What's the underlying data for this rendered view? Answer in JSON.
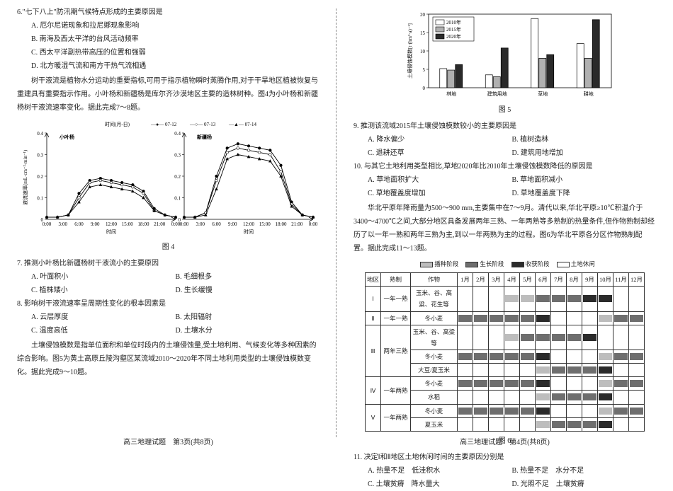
{
  "left": {
    "q6": {
      "stem": "6.\"七下八上\"防汛期气候特点形成的主要原因是",
      "A": "A. 厄尔尼诺现象和拉尼娜现象影响",
      "B": "B. 南海及西太平洋的台风活动频率",
      "C": "C. 西太平洋副热带高压的位置和强弱",
      "D": "D. 北方暖湿气流和南方干热气流相遇"
    },
    "intro78_1": "树干液流是植物水分运动的重要指标,可用于指示植物瞬时蒸腾作用,对于干旱地区植被恢复与重建具有重要指示作用。小叶杨和新疆杨是库尔齐沙漠地区主要的造林树种。图4为小叶杨和新疆杨树干液流速率变化。据此完成7～8题。",
    "fig4": {
      "caption": "图 4",
      "ylabel": "液流速率(mL·cm⁻²·min⁻¹)",
      "xlabel": "时间",
      "xlabel2": "时间",
      "date_label": "时间(月-日)",
      "series1": "07-12",
      "series2": "07-13",
      "series3": "07-14",
      "panel_left": "小叶杨",
      "panel_right": "新疆杨",
      "ticks_y": [
        "0",
        "0.1",
        "0.2",
        "0.3",
        "0.4"
      ],
      "ticks_x": [
        "0:00",
        "3:00",
        "6:00",
        "9:00",
        "12:00",
        "15:00",
        "18:00",
        "21:00",
        "0:00"
      ],
      "left_curves": {
        "d1": [
          0.01,
          0.01,
          0.02,
          0.12,
          0.18,
          0.19,
          0.18,
          0.17,
          0.16,
          0.13,
          0.05,
          0.02,
          0.01
        ],
        "d2": [
          0.01,
          0.01,
          0.02,
          0.1,
          0.17,
          0.18,
          0.17,
          0.16,
          0.15,
          0.12,
          0.04,
          0.02,
          0.01
        ],
        "d3": [
          0.01,
          0.01,
          0.02,
          0.08,
          0.15,
          0.16,
          0.15,
          0.14,
          0.13,
          0.1,
          0.04,
          0.02,
          0.01
        ]
      },
      "right_curves": {
        "d1": [
          0.01,
          0.01,
          0.03,
          0.2,
          0.33,
          0.35,
          0.34,
          0.33,
          0.32,
          0.25,
          0.08,
          0.02,
          0.01
        ],
        "d2": [
          0.01,
          0.01,
          0.03,
          0.18,
          0.31,
          0.33,
          0.32,
          0.31,
          0.3,
          0.22,
          0.07,
          0.02,
          0.01
        ],
        "d3": [
          0.01,
          0.01,
          0.02,
          0.14,
          0.28,
          0.3,
          0.29,
          0.28,
          0.27,
          0.2,
          0.06,
          0.02,
          0.01
        ]
      }
    },
    "q7": {
      "stem": "7. 推测小叶杨比新疆杨树干液流小的主要原因",
      "A": "A. 叶面积小",
      "B": "B. 毛细根多",
      "C": "C. 植株矮小",
      "D": "D. 生长缓慢"
    },
    "q8": {
      "stem": "8. 影响树干液流速率呈周期性变化的根本因素是",
      "A": "A. 云层厚度",
      "B": "B. 太阳辐射",
      "C": "C. 温度高低",
      "D": "D. 土壤水分"
    },
    "intro910": "土壤侵蚀模数是指单位面积和单位时段内的土壤侵蚀量,受土地利用、气候变化等多种因素的综合影响。图5为黄土高原丘陵沟壑区某流域2010～2020年不同土地利用类型的土壤侵蚀模数变化。据此完成9～10题。",
    "footer": "高三地理试题　第3页(共8页)"
  },
  "right": {
    "fig5": {
      "caption": "图 5",
      "ylabel": "土壤侵蚀模数[t·(hm²·a)⁻¹]",
      "legend": [
        "2010年",
        "2015年",
        "2020年"
      ],
      "categories": [
        "林地",
        "建筑用地",
        "草地",
        "耕地"
      ],
      "ylim": [
        0,
        20
      ],
      "ytick_step": 5,
      "values": {
        "2010": [
          5.2,
          3.5,
          18.8,
          12.0
        ],
        "2015": [
          4.8,
          3.0,
          8.0,
          8.0
        ],
        "2020": [
          6.3,
          10.8,
          9.0,
          18.5
        ]
      },
      "colors": {
        "2010": "#ffffff",
        "2015": "#b0b0b0",
        "2020": "#2a2a2a"
      },
      "bar_border": "#000"
    },
    "q9": {
      "stem": "9. 推测该流域2015年土壤侵蚀模数较小的主要原因是",
      "A": "A. 降水偏少",
      "B": "B. 植树造林",
      "C": "C. 退耕还草",
      "D": "D. 建筑用地增加"
    },
    "q10": {
      "stem": "10. 与其它土地利用类型相比,草地2020年比2010年土壤侵蚀模数降低的原因是",
      "A": "A. 草地面积扩大",
      "B": "B. 草地面积减小",
      "C": "C. 草地覆盖度增加",
      "D": "D. 草地覆盖度下降"
    },
    "intro1113": "华北平原年降雨量为500～900 mm,主要集中在7～9月。清代以来,华北平原≥10℃积温介于3400～4700℃之间,大部分地区具备发展两年三熟、一年两熟等多熟制的热量条件,但作物熟制却经历了以一年一熟和两年三熟为主,到以一年两熟为主的过程。图6为华北平原各分区作物熟制配置。据此完成11～13题。",
    "fig6": {
      "legend": {
        "sow": "播种阶段",
        "grow": "生长阶段",
        "harv": "收获阶段",
        "idle": "土地休闲"
      },
      "colors": {
        "sow": "#bdbdbd",
        "grow": "#6e6e6e",
        "harv": "#2b2b2b",
        "idle": "#ffffff"
      },
      "border": "#333",
      "header": [
        "地区",
        "熟制",
        "作物",
        "1月",
        "2月",
        "3月",
        "4月",
        "5月",
        "6月",
        "7月",
        "8月",
        "9月",
        "10月",
        "11月",
        "12月"
      ],
      "rows": [
        {
          "region": "Ⅰ",
          "rowspan": 1,
          "sys": "一年一熟",
          "crop": "玉米、谷、高粱、花生等",
          "bar": [
            "idle",
            "idle",
            "idle",
            "sow",
            "sow",
            "grow",
            "grow",
            "grow",
            "harv",
            "harv",
            "idle",
            "idle"
          ]
        },
        {
          "region": "Ⅱ",
          "rowspan": 1,
          "sys": "一年一熟",
          "crop": "冬小麦",
          "bar": [
            "grow",
            "grow",
            "grow",
            "grow",
            "grow",
            "harv",
            "idle",
            "idle",
            "idle",
            "sow",
            "grow",
            "grow"
          ]
        },
        {
          "region": "Ⅲ",
          "rowspan": 3,
          "sys": "两年三熟",
          "crop": "玉米、谷、高粱等",
          "bar": [
            "idle",
            "idle",
            "idle",
            "sow",
            "grow",
            "grow",
            "grow",
            "grow",
            "harv",
            "idle",
            "idle",
            "idle"
          ]
        },
        {
          "region": "",
          "rowspan": 0,
          "sys": "",
          "crop": "冬小麦",
          "bar": [
            "grow",
            "grow",
            "grow",
            "grow",
            "grow",
            "harv",
            "idle",
            "idle",
            "idle",
            "sow",
            "grow",
            "grow"
          ]
        },
        {
          "region": "",
          "rowspan": 0,
          "sys": "",
          "crop": "大豆/夏玉米",
          "bar": [
            "idle",
            "idle",
            "idle",
            "idle",
            "idle",
            "sow",
            "grow",
            "grow",
            "grow",
            "harv",
            "idle",
            "idle"
          ]
        },
        {
          "region": "Ⅳ",
          "rowspan": 2,
          "sys": "一年两熟",
          "crop": "冬小麦",
          "bar": [
            "grow",
            "grow",
            "grow",
            "grow",
            "grow",
            "harv",
            "idle",
            "idle",
            "idle",
            "sow",
            "grow",
            "grow"
          ]
        },
        {
          "region": "",
          "rowspan": 0,
          "sys": "",
          "crop": "水稻",
          "bar": [
            "idle",
            "idle",
            "idle",
            "idle",
            "idle",
            "sow",
            "grow",
            "grow",
            "grow",
            "harv",
            "idle",
            "idle"
          ]
        },
        {
          "region": "Ⅴ",
          "rowspan": 2,
          "sys": "一年两熟",
          "crop": "冬小麦",
          "bar": [
            "grow",
            "grow",
            "grow",
            "grow",
            "grow",
            "harv",
            "idle",
            "idle",
            "idle",
            "sow",
            "grow",
            "grow"
          ]
        },
        {
          "region": "",
          "rowspan": 0,
          "sys": "",
          "crop": "夏玉米",
          "bar": [
            "idle",
            "idle",
            "idle",
            "idle",
            "idle",
            "sow",
            "grow",
            "grow",
            "grow",
            "harv",
            "idle",
            "idle"
          ]
        }
      ],
      "caption": "图 6"
    },
    "q11": {
      "stem": "11. 决定Ⅰ和Ⅱ地区土地休闲时间的主要原因分别是",
      "A": "A. 热量不足　低洼积水",
      "B": "B. 热量不足　水分不足",
      "C": "C. 土壤贫瘠　降水量大",
      "D": "D. 光照不足　土壤贫瘠"
    },
    "footer": "高三地理试题　第4页(共8页)"
  }
}
